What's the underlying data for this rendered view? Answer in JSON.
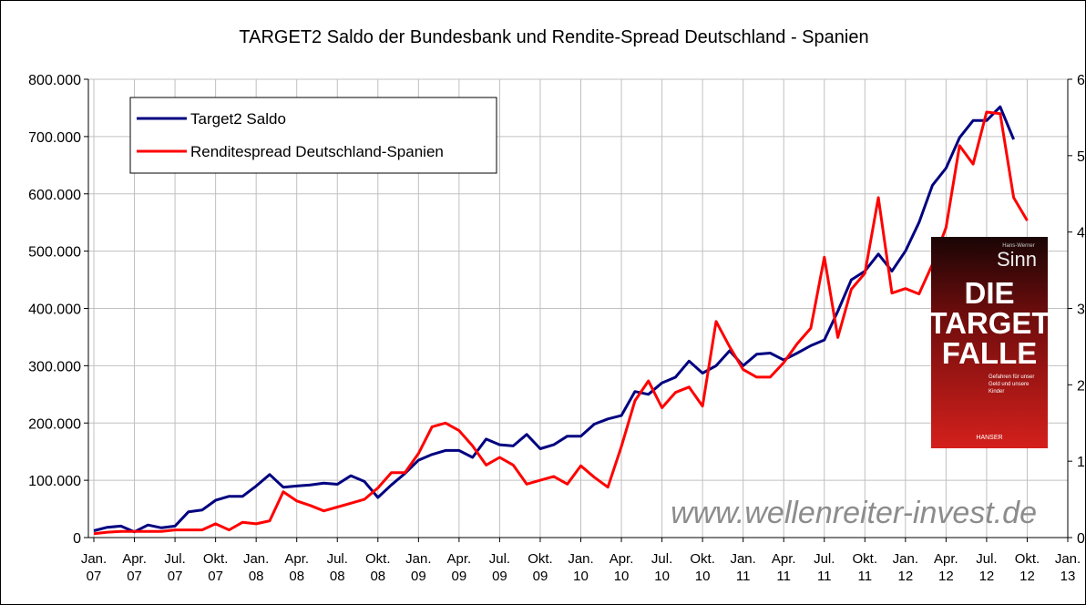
{
  "chart_data": {
    "type": "line",
    "title": "TARGET2 Saldo der Bundesbank und Rendite-Spread Deutschland - Spanien",
    "watermark": "www.wellenreiter-invest.de",
    "categories": [
      "Jan. 07",
      null,
      null,
      "Apr. 07",
      null,
      null,
      "Jul. 07",
      null,
      null,
      "Okt. 07",
      null,
      null,
      "Jan. 08",
      null,
      null,
      "Apr. 08",
      null,
      null,
      "Jul. 08",
      null,
      null,
      "Okt. 08",
      null,
      null,
      "Jan. 09",
      null,
      null,
      "Apr. 09",
      null,
      null,
      "Jul. 09",
      null,
      null,
      "Okt. 09",
      null,
      null,
      "Jan. 10",
      null,
      null,
      "Apr. 10",
      null,
      null,
      "Jul. 10",
      null,
      null,
      "Okt. 10",
      null,
      null,
      "Jan. 11",
      null,
      null,
      "Apr. 11",
      null,
      null,
      "Jul. 11",
      null,
      null,
      "Okt. 11",
      null,
      null,
      "Jan. 12",
      null,
      null,
      "Apr. 12",
      null,
      null,
      "Jul. 12",
      null,
      null,
      "Okt. 12",
      null,
      null,
      "Jan. 13"
    ],
    "series": [
      {
        "name": "Target2 Saldo",
        "color": "#000080",
        "values": [
          12000,
          18000,
          20000,
          10000,
          22000,
          17000,
          20000,
          45000,
          48000,
          65000,
          72000,
          72000,
          90000,
          110000,
          88000,
          90000,
          92000,
          95000,
          93000,
          108000,
          98000,
          70000,
          92000,
          112000,
          135000,
          145000,
          152000,
          152000,
          140000,
          172000,
          162000,
          160000,
          180000,
          155000,
          162000,
          177000,
          177000,
          198000,
          207000,
          213000,
          255000,
          250000,
          270000,
          280000,
          308000,
          287000,
          300000,
          326000,
          300000,
          320000,
          322000,
          310000,
          322000,
          335000,
          345000,
          395000,
          450000,
          465000,
          495000,
          465000,
          500000,
          550000,
          615000,
          645000,
          698000,
          728000,
          728000,
          752000,
          695000,
          null,
          null,
          null,
          null
        ]
      },
      {
        "name": "Renditespread Deutschland-Spanien",
        "color": "#ff0000",
        "axis": "y2",
        "values": [
          0.05,
          0.07,
          0.08,
          0.08,
          0.08,
          0.08,
          0.1,
          0.1,
          0.1,
          0.18,
          0.1,
          0.2,
          0.18,
          0.22,
          0.6,
          0.48,
          0.42,
          0.35,
          0.4,
          0.45,
          0.5,
          0.65,
          0.85,
          0.85,
          1.1,
          1.45,
          1.5,
          1.4,
          1.2,
          0.95,
          1.05,
          0.95,
          0.7,
          0.75,
          0.8,
          0.7,
          0.94,
          0.79,
          0.66,
          1.19,
          1.79,
          2.05,
          1.7,
          1.9,
          1.97,
          1.72,
          2.83,
          2.5,
          2.2,
          2.1,
          2.1,
          2.29,
          2.54,
          2.74,
          3.67,
          2.62,
          3.25,
          3.46,
          4.45,
          3.2,
          3.26,
          3.19,
          3.58,
          4.06,
          5.13,
          4.89,
          5.57,
          5.55,
          4.45,
          4.15,
          null,
          null,
          null
        ]
      }
    ],
    "ylim": [
      0,
      800000
    ],
    "yticks": [
      0,
      {
        "value": 100000,
        "label": "100.000"
      },
      {
        "value": 200000,
        "label": "200.000"
      },
      {
        "value": 300000,
        "label": "300.000"
      },
      {
        "value": 400000,
        "label": "400.000"
      },
      {
        "value": 500000,
        "label": "500.000"
      },
      {
        "value": 600000,
        "label": "600.000"
      },
      {
        "value": 700000,
        "label": "700.000"
      },
      {
        "value": 800000,
        "label": "800.000"
      }
    ],
    "y2lim": [
      0,
      6
    ],
    "y2ticks": [
      0,
      1,
      2,
      3,
      4,
      5,
      6
    ],
    "grid": true,
    "legend": "upper left"
  },
  "book_cover": {
    "author_small": "Hans-Werner",
    "author": "Sinn",
    "title_lines": [
      "DIE",
      "TARGET",
      "FALLE"
    ],
    "subtitle": "Gefahren für unser Geld und unsere Kinder",
    "publisher": "HANSER"
  }
}
